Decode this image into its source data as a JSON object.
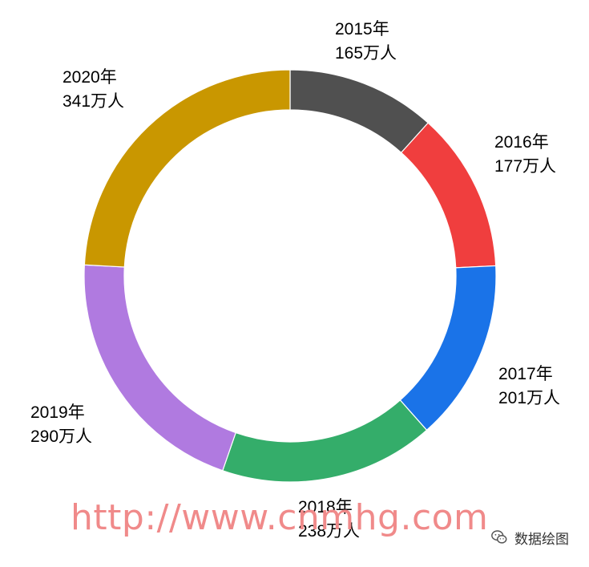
{
  "chart_data": {
    "type": "pie",
    "donut": true,
    "title": "",
    "series": [
      {
        "label": "2015年",
        "value_label": "165万人",
        "value": 165,
        "color": "#505050"
      },
      {
        "label": "2016年",
        "value_label": "177万人",
        "value": 177,
        "color": "#f03e3e"
      },
      {
        "label": "2017年",
        "value_label": "201万人",
        "value": 201,
        "color": "#1a73e8"
      },
      {
        "label": "2018年",
        "value_label": "238万人",
        "value": 238,
        "color": "#34ad6a"
      },
      {
        "label": "2019年",
        "value_label": "290万人",
        "value": 290,
        "color": "#b07ae0"
      },
      {
        "label": "2020年",
        "value_label": "341万人",
        "value": 341,
        "color": "#c99700"
      }
    ]
  },
  "watermark": "http://www.cnmhg.com",
  "brand": {
    "text": "数据绘图",
    "icon": "wechat-icon"
  }
}
